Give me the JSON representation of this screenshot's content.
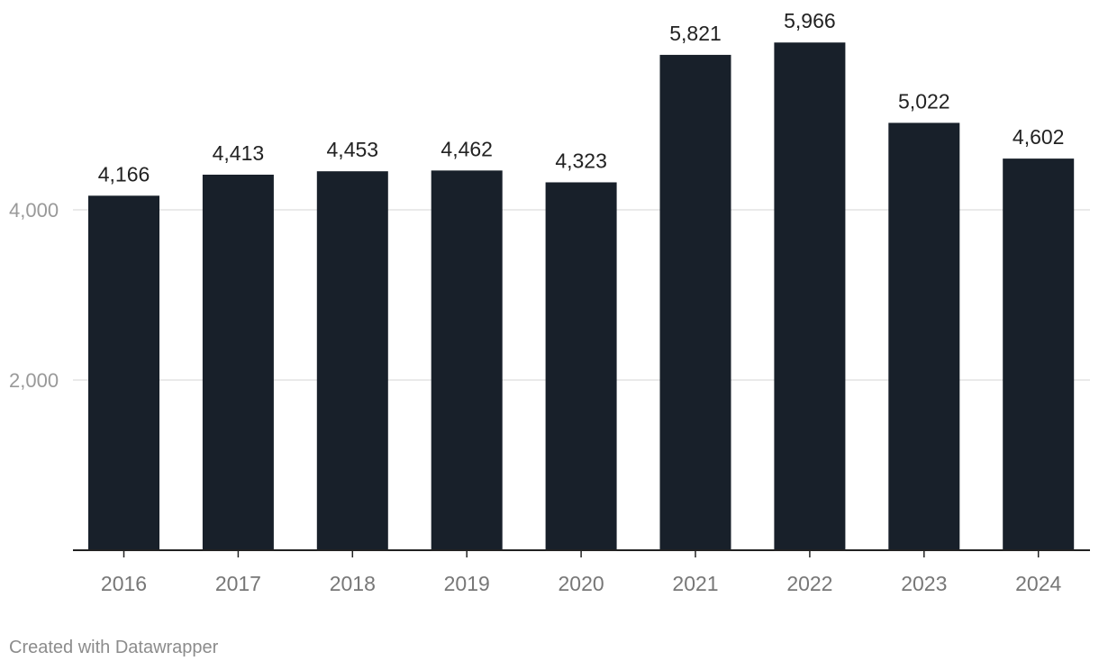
{
  "chart_data": {
    "type": "bar",
    "categories": [
      "2016",
      "2017",
      "2018",
      "2019",
      "2020",
      "2021",
      "2022",
      "2023",
      "2024"
    ],
    "values": [
      4166,
      4413,
      4453,
      4462,
      4323,
      5821,
      5966,
      5022,
      4602
    ],
    "value_labels": [
      "4,166",
      "4,413",
      "4,453",
      "4,462",
      "4,323",
      "5,821",
      "5,966",
      "5,022",
      "4,602"
    ],
    "yticks": [
      {
        "value": 2000,
        "label": "2,000"
      },
      {
        "value": 4000,
        "label": "4,000"
      }
    ],
    "ylim": [
      0,
      6000
    ],
    "grid": true,
    "bar_color": "#18202a",
    "title": "",
    "xlabel": "",
    "ylabel": ""
  },
  "credit": "Created with Datawrapper"
}
